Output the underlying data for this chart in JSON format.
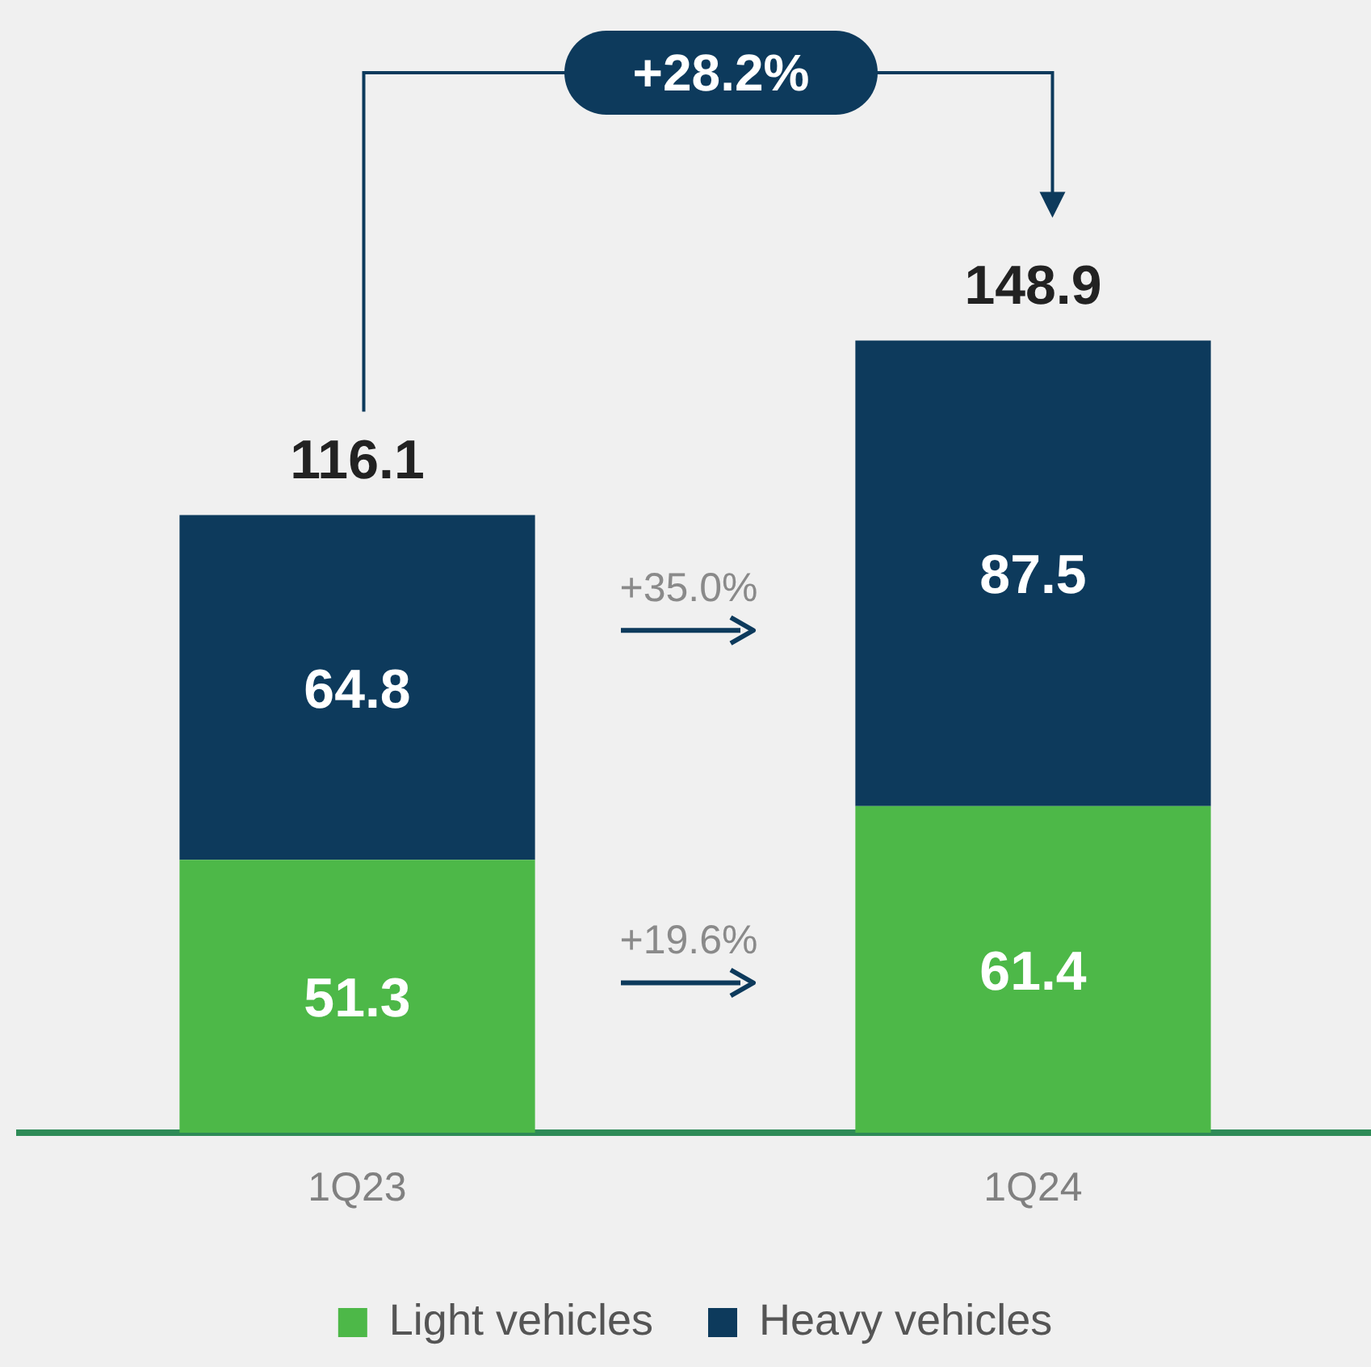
{
  "chart_data": {
    "type": "bar",
    "stacked": true,
    "categories": [
      "1Q23",
      "1Q24"
    ],
    "series": [
      {
        "name": "Light vehicles",
        "color": "#4db848",
        "values": [
          51.3,
          61.4
        ]
      },
      {
        "name": "Heavy vehicles",
        "color": "#0d3a5c",
        "values": [
          64.8,
          87.5
        ]
      }
    ],
    "data_labels": true,
    "totals": [
      "116.1",
      "148.9"
    ],
    "annotations": [
      "+28.2%",
      "+35.0%",
      "+19.6%"
    ],
    "legend": "bottom",
    "grid": false
  }
}
